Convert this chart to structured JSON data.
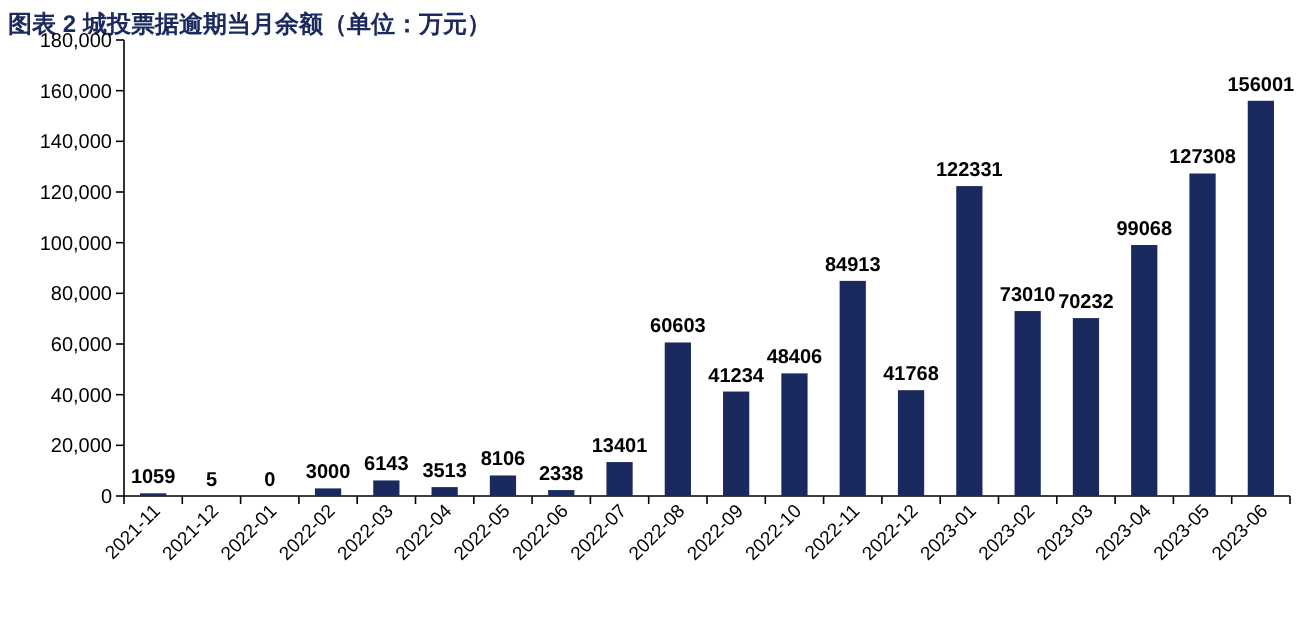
{
  "chart_data": {
    "type": "bar",
    "title": "图表 2 城投票据逾期当月余额（单位：万元）",
    "categories": [
      "2021-11",
      "2021-12",
      "2022-01",
      "2022-02",
      "2022-03",
      "2022-04",
      "2022-05",
      "2022-06",
      "2022-07",
      "2022-08",
      "2022-09",
      "2022-10",
      "2022-11",
      "2022-12",
      "2023-01",
      "2023-02",
      "2023-03",
      "2023-04",
      "2023-05",
      "2023-06"
    ],
    "values": [
      1059,
      5,
      0,
      3000,
      6143,
      3513,
      8106,
      2338,
      13401,
      60603,
      41234,
      48406,
      84913,
      41768,
      122331,
      73010,
      70232,
      99068,
      127308,
      156001
    ],
    "color": "#1b2a5e",
    "data_labels": true,
    "ylim": [
      0,
      180000
    ],
    "yticks": [
      0,
      {
        "value": 20000,
        "label": "20,000"
      },
      {
        "value": 40000,
        "label": "40,000"
      },
      {
        "value": 60000,
        "label": "60,000"
      },
      {
        "value": 80000,
        "label": "80,000"
      },
      {
        "value": 100000,
        "label": "100,000"
      },
      {
        "value": 120000,
        "label": "120,000"
      },
      {
        "value": 140000,
        "label": "140,000"
      },
      {
        "value": 160000,
        "label": "160,000"
      },
      {
        "value": 180000,
        "label": "180,000"
      }
    ]
  }
}
